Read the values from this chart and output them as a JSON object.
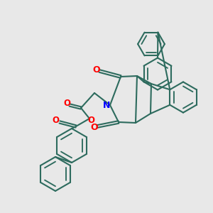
{
  "bg_color": "#e8e8e8",
  "bond_color": "#2d6b5e",
  "o_color": "#ff0000",
  "n_color": "#0000ff",
  "lw": 1.5,
  "figsize": [
    3.0,
    3.0
  ],
  "dpi": 100,
  "xlim": [
    0,
    10
  ],
  "ylim": [
    0,
    10
  ]
}
